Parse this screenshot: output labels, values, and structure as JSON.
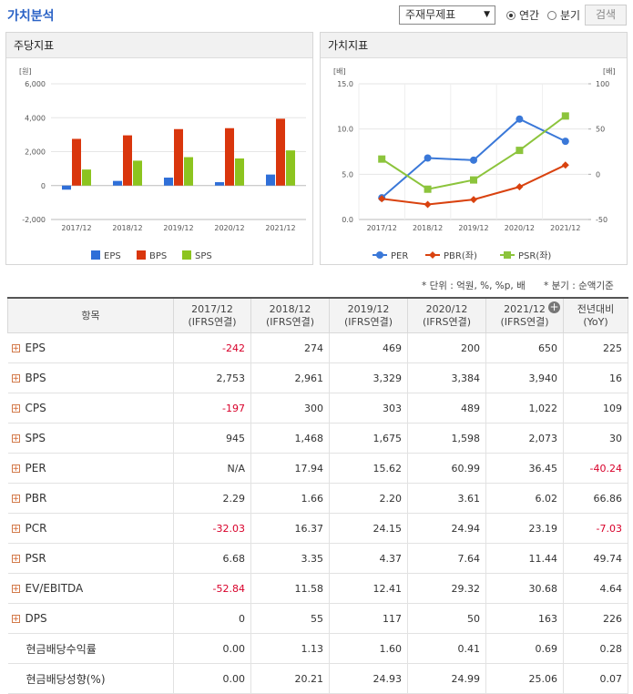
{
  "header": {
    "title": "가치분석",
    "select": "주재무제표",
    "radios": [
      "연간",
      "분기"
    ],
    "button": "검색"
  },
  "chart_data": [
    {
      "type": "bar",
      "title": "주당지표",
      "y_label": "[원]",
      "categories": [
        "2017/12",
        "2018/12",
        "2019/12",
        "2020/12",
        "2021/12"
      ],
      "series": [
        {
          "name": "EPS",
          "color": "#2f6fd8",
          "values": [
            -242,
            274,
            469,
            200,
            650
          ]
        },
        {
          "name": "BPS",
          "color": "#d9360d",
          "values": [
            2753,
            2961,
            3329,
            3384,
            3940
          ]
        },
        {
          "name": "SPS",
          "color": "#8cc41f",
          "values": [
            945,
            1468,
            1675,
            1598,
            2073
          ]
        }
      ],
      "ylim": [
        -2000,
        6000
      ],
      "yticks": [
        {
          "value": -2000,
          "label": "-2,000"
        },
        0,
        {
          "value": 2000,
          "label": "2,000"
        },
        {
          "value": 4000,
          "label": "4,000"
        },
        {
          "value": 6000,
          "label": "6,000"
        }
      ],
      "grid": true
    },
    {
      "type": "line",
      "title": "가치지표",
      "y_label": "[배]",
      "y2_label": "[배]",
      "categories": [
        "2017/12",
        "2018/12",
        "2019/12",
        "2020/12",
        "2021/12"
      ],
      "series": [
        {
          "name": "PER",
          "color": "#3a78d8",
          "marker": "circle",
          "axis": "y2",
          "values": [
            -26,
            17.94,
            15.62,
            60.99,
            36.45
          ]
        },
        {
          "name": "PBR(좌)",
          "color": "#d9420f",
          "marker": "diamond",
          "values": [
            2.29,
            1.66,
            2.2,
            3.61,
            6.02
          ]
        },
        {
          "name": "PSR(좌)",
          "color": "#8cc43c",
          "marker": "square",
          "values": [
            6.68,
            3.35,
            4.37,
            7.64,
            11.44
          ]
        }
      ],
      "ylim": [
        0,
        15
      ],
      "yticks": [
        {
          "value": 0,
          "label": "0.0"
        },
        {
          "value": 5,
          "label": "5.0"
        },
        {
          "value": 10,
          "label": "10.0"
        },
        {
          "value": 15,
          "label": "15.0"
        }
      ],
      "y2lim": [
        -50,
        100
      ],
      "y2ticks": [
        -50,
        0,
        50,
        100
      ],
      "grid": true
    }
  ],
  "notes": [
    "* 단위 : 억원, %, %p, 배",
    "* 분기 : 순액기준"
  ],
  "table": {
    "header": "항목",
    "columns": [
      "2017/12\n(IFRS연결)",
      "2018/12\n(IFRS연결)",
      "2019/12\n(IFRS연결)",
      "2020/12\n(IFRS연결)",
      "2021/12\n(IFRS연결)",
      "전년대비\n(YoY)"
    ],
    "rows": [
      {
        "label": "EPS",
        "expandable": true,
        "values": [
          "-242",
          "274",
          "469",
          "200",
          "650",
          "225"
        ]
      },
      {
        "label": "BPS",
        "expandable": true,
        "values": [
          "2,753",
          "2,961",
          "3,329",
          "3,384",
          "3,940",
          "16"
        ]
      },
      {
        "label": "CPS",
        "expandable": true,
        "values": [
          "-197",
          "300",
          "303",
          "489",
          "1,022",
          "109"
        ]
      },
      {
        "label": "SPS",
        "expandable": true,
        "values": [
          "945",
          "1,468",
          "1,675",
          "1,598",
          "2,073",
          "30"
        ]
      },
      {
        "label": "PER",
        "expandable": true,
        "values": [
          "N/A",
          "17.94",
          "15.62",
          "60.99",
          "36.45",
          "-40.24"
        ]
      },
      {
        "label": "PBR",
        "expandable": true,
        "values": [
          "2.29",
          "1.66",
          "2.20",
          "3.61",
          "6.02",
          "66.86"
        ]
      },
      {
        "label": "PCR",
        "expandable": true,
        "values": [
          "-32.03",
          "16.37",
          "24.15",
          "24.94",
          "23.19",
          "-7.03"
        ]
      },
      {
        "label": "PSR",
        "expandable": true,
        "values": [
          "6.68",
          "3.35",
          "4.37",
          "7.64",
          "11.44",
          "49.74"
        ]
      },
      {
        "label": "EV/EBITDA",
        "expandable": true,
        "values": [
          "-52.84",
          "11.58",
          "12.41",
          "29.32",
          "30.68",
          "4.64"
        ]
      },
      {
        "label": "DPS",
        "expandable": true,
        "values": [
          "0",
          "55",
          "117",
          "50",
          "163",
          "226"
        ]
      },
      {
        "label": "현금배당수익률",
        "expandable": false,
        "values": [
          "0.00",
          "1.13",
          "1.60",
          "0.41",
          "0.69",
          "0.28"
        ]
      },
      {
        "label": "현금배당성향(%)",
        "expandable": false,
        "values": [
          "0.00",
          "20.21",
          "24.93",
          "24.99",
          "25.06",
          "0.07"
        ]
      }
    ]
  }
}
